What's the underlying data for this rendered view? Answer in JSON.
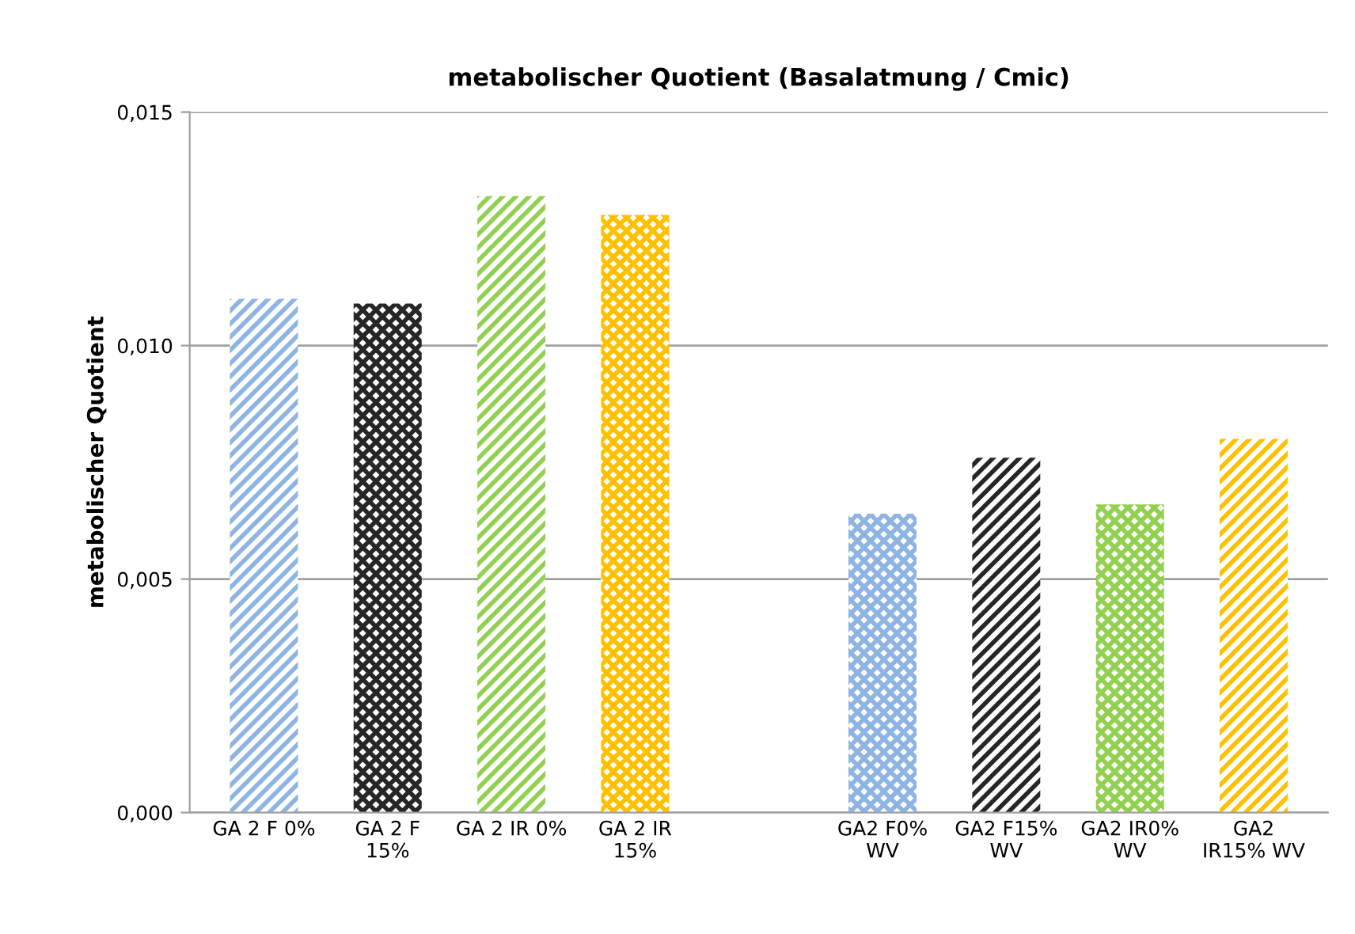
{
  "chart_data": {
    "type": "bar",
    "title": "metabolischer Quotient (Basalatmung / Cmic)",
    "ylabel": "metabolischer Quotient",
    "categories": [
      "GA 2 F 0%",
      "GA 2 F\n15%",
      "GA 2 IR 0%",
      "GA 2 IR\n15%",
      null,
      "GA2 F0%\nWV",
      "GA2 F15%\nWV",
      "GA2 IR0%\nWV",
      "GA2\nIR15% WV"
    ],
    "values": [
      0.011,
      0.0109,
      0.0132,
      0.0128,
      null,
      0.0064,
      0.0076,
      0.0066,
      0.008
    ],
    "colors": [
      "#8db4e2",
      "#262626",
      "#92d050",
      "#ffc000",
      null,
      "#8db4e2",
      "#262626",
      "#92d050",
      "#ffc000"
    ],
    "ylim": [
      0,
      0.015
    ],
    "yticks": [
      {
        "value": 0,
        "label": "0,000"
      },
      {
        "value": 0.005,
        "label": "0,005"
      },
      {
        "value": 0.01,
        "label": "0,010"
      },
      {
        "value": 0.015,
        "label": "0,015"
      }
    ],
    "grid": "y",
    "legend": false
  }
}
